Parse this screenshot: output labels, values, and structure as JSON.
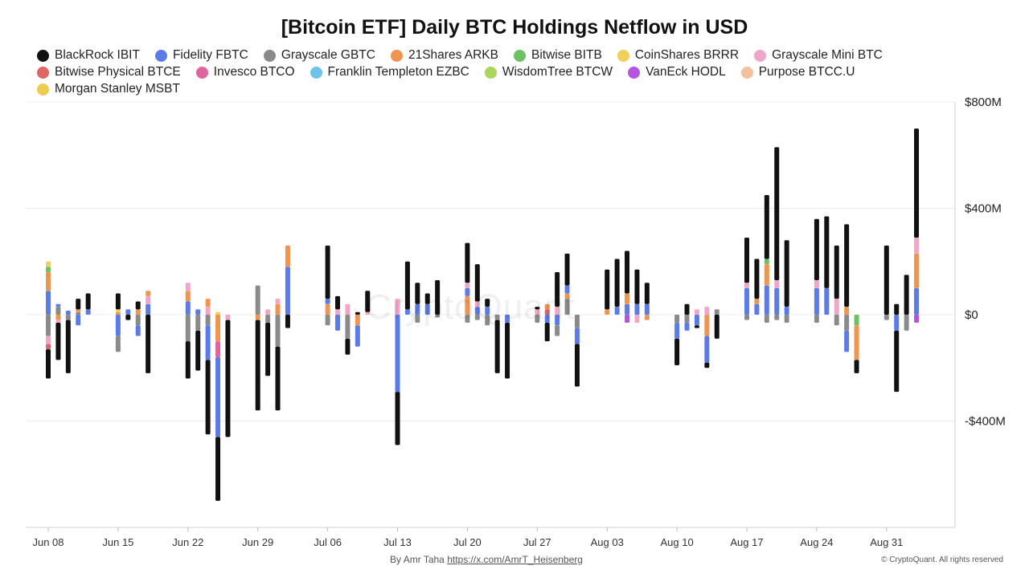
{
  "title": "[Bitcoin ETF] Daily BTC Holdings Netflow in USD",
  "watermark": "CryptoQuant",
  "footer": {
    "author_prefix": "By Amr Taha",
    "author_link": "https://x.com/AmrT_Heisenberg",
    "copyright": "© CryptoQuant. All rights reserved"
  },
  "colors": {
    "IBIT": "#111111",
    "FBTC": "#5b7be6",
    "GBTC": "#8a8a8a",
    "ARKB": "#f0944f",
    "BITB": "#6cc164",
    "BRRR": "#f0cf5a",
    "MINI": "#f2a6c7",
    "BTCE": "#e06666",
    "BTCO": "#e0649e",
    "EZBC": "#6ec3ea",
    "BTCW": "#a9d65c",
    "HODL": "#b454e0",
    "BTCC": "#f3c19e",
    "MSBT": "#eccd52"
  },
  "chart_data": {
    "type": "bar",
    "stacked": true,
    "title": "[Bitcoin ETF] Daily BTC Holdings Netflow in USD",
    "ylim": [
      -800,
      800
    ],
    "y_ticks": [
      800,
      400,
      0,
      -400
    ],
    "y_tick_labels": [
      "$800M",
      "$400M",
      "$0",
      "-$400M"
    ],
    "y_unit": "USD millions",
    "x_tick_labels": [
      "Jun 08",
      "Jun 15",
      "Jun 22",
      "Jun 29",
      "Jul 06",
      "Jul 13",
      "Jul 20",
      "Jul 27",
      "Aug 03",
      "Aug 10",
      "Aug 17",
      "Aug 24",
      "Aug 31"
    ],
    "legend_position": "top",
    "series": [
      {
        "key": "IBIT",
        "name": "BlackRock IBIT"
      },
      {
        "key": "FBTC",
        "name": "Fidelity FBTC"
      },
      {
        "key": "GBTC",
        "name": "Grayscale GBTC"
      },
      {
        "key": "ARKB",
        "name": "21Shares ARKB"
      },
      {
        "key": "BITB",
        "name": "Bitwise BITB"
      },
      {
        "key": "BRRR",
        "name": "CoinShares BRRR"
      },
      {
        "key": "MINI",
        "name": "Grayscale Mini BTC"
      },
      {
        "key": "BTCE",
        "name": "Bitwise Physical BTCE"
      },
      {
        "key": "BTCO",
        "name": "Invesco BTCO"
      },
      {
        "key": "EZBC",
        "name": "Franklin Templeton EZBC"
      },
      {
        "key": "BTCW",
        "name": "WisdomTree BTCW"
      },
      {
        "key": "HODL",
        "name": "VanEck HODL"
      },
      {
        "key": "BTCC",
        "name": "Purpose BTCC.U"
      },
      {
        "key": "MSBT",
        "name": "Morgan Stanley MSBT"
      }
    ],
    "days": [
      {
        "date": "Jun 08",
        "values": {
          "FBTC": 90,
          "ARKB": 70,
          "BITB": 20,
          "BRRR": 20,
          "GBTC": -80,
          "MINI": -30,
          "BTCE": -20,
          "IBIT": -110
        }
      },
      {
        "date": "Jun 09",
        "values": {
          "GBTC": 30,
          "FBTC": 10,
          "ARKB": -20,
          "MINI": -10,
          "GBTC2": 0,
          "IBIT": -140
        }
      },
      {
        "date": "Jun 10",
        "values": {
          "FBTC": 15,
          "GBTC": -20,
          "IBIT": -200
        }
      },
      {
        "date": "Jun 11",
        "values": {
          "GBTC": 10,
          "ARKB": 10,
          "FBTC": -40,
          "IBIT": 40
        }
      },
      {
        "date": "Jun 12",
        "values": {
          "FBTC": 20,
          "IBIT": 60
        }
      },
      {
        "date": "Jun 15",
        "values": {
          "ARKB": 10,
          "BRRR": 10,
          "IBIT": 60,
          "FBTC": -80,
          "GBTC": -60
        }
      },
      {
        "date": "Jun 16",
        "values": {
          "FBTC": 20,
          "IBIT": -20
        }
      },
      {
        "date": "Jun 17",
        "values": {
          "ARKB": 20,
          "IBIT": 30,
          "GBTC": -40,
          "FBTC": -40
        }
      },
      {
        "date": "Jun 18",
        "values": {
          "FBTC": 40,
          "MINI": 30,
          "ARKB": 20,
          "IBIT": -220
        }
      },
      {
        "date": "Jun 22",
        "values": {
          "FBTC": 50,
          "ARKB": 40,
          "MINI": 30,
          "GBTC": -100,
          "IBIT": -140
        }
      },
      {
        "date": "Jun 23",
        "values": {
          "FBTC": 20,
          "GBTC": -60,
          "IBIT": -150
        }
      },
      {
        "date": "Jun 24",
        "values": {
          "MINI": 30,
          "ARKB": 30,
          "GBTC": -40,
          "FBTC": -130,
          "IBIT": -280
        }
      },
      {
        "date": "Jun 25",
        "values": {
          "BRRR": 10,
          "ARKB": -100,
          "BTCO": -60,
          "FBTC": -300,
          "IBIT": -240
        }
      },
      {
        "date": "Jun 26",
        "values": {
          "MINI": -20,
          "IBIT": -440
        }
      },
      {
        "date": "Jun 29",
        "values": {
          "GBTC": 110,
          "ARKB": -20,
          "IBIT": -340
        }
      },
      {
        "date": "Jun 30",
        "values": {
          "MINI": 20,
          "GBTC": -30,
          "IBIT": -200
        }
      },
      {
        "date": "Jul 01",
        "values": {
          "ARKB": 40,
          "MINI": 20,
          "GBTC": -120,
          "IBIT": -240
        }
      },
      {
        "date": "Jul 02",
        "values": {
          "FBTC": 180,
          "ARKB": 80,
          "IBIT": -50
        }
      },
      {
        "date": "Jul 06",
        "values": {
          "IBIT": 200,
          "ARKB": 40,
          "FBTC": 20,
          "GBTC": -40
        }
      },
      {
        "date": "Jul 07",
        "values": {
          "IBIT": 50,
          "MINI": 20,
          "FBTC": -60
        }
      },
      {
        "date": "Jul 08",
        "values": {
          "MINI": 40,
          "GBTC": -90,
          "IBIT": -60
        }
      },
      {
        "date": "Jul 09",
        "values": {
          "IBIT": 10,
          "ARKB": -40,
          "FBTC": -80
        }
      },
      {
        "date": "Jul 10",
        "values": {
          "IBIT": 80,
          "MINI": 10
        }
      },
      {
        "date": "Jul 13",
        "values": {
          "MINI": 60,
          "FBTC": -290,
          "IBIT": -200
        }
      },
      {
        "date": "Jul 14",
        "values": {
          "IBIT": 180,
          "FBTC": 20
        }
      },
      {
        "date": "Jul 15",
        "values": {
          "IBIT": 80,
          "FBTC": 40,
          "GBTC": -30
        }
      },
      {
        "date": "Jul 16",
        "values": {
          "IBIT": 40,
          "FBTC": 40
        }
      },
      {
        "date": "Jul 17",
        "values": {
          "IBIT": 130,
          "GBTC": -10
        }
      },
      {
        "date": "Jul 20",
        "values": {
          "IBIT": 150,
          "ARKB": 70,
          "FBTC": 30,
          "MINI": 20,
          "GBTC": -30
        }
      },
      {
        "date": "Jul 21",
        "values": {
          "IBIT": 140,
          "FBTC": 30,
          "MINI": 20,
          "GBTC": -20
        }
      },
      {
        "date": "Jul 22",
        "values": {
          "IBIT": 30,
          "FBTC": 30,
          "GBTC": -40
        }
      },
      {
        "date": "Jul 23",
        "values": {
          "GBTC": -20,
          "IBIT": -200
        }
      },
      {
        "date": "Jul 24",
        "values": {
          "FBTC": -30,
          "IBIT": -210
        }
      },
      {
        "date": "Jul 27",
        "values": {
          "IBIT": 10,
          "MINI": 20,
          "GBTC": -30
        }
      },
      {
        "date": "Jul 28",
        "values": {
          "BTCE": 20,
          "ARKB": 20,
          "FBTC": -30,
          "IBIT": -70
        }
      },
      {
        "date": "Jul 29",
        "values": {
          "IBIT": 130,
          "MINI": 30,
          "FBTC": -40,
          "GBTC": -40
        }
      },
      {
        "date": "Jul 30",
        "values": {
          "IBIT": 120,
          "GBTC": 60,
          "ARKB": 20,
          "FBTC": 30
        }
      },
      {
        "date": "Jul 31",
        "values": {
          "GBTC": -50,
          "FBTC": -60,
          "IBIT": -160
        }
      },
      {
        "date": "Aug 03",
        "values": {
          "IBIT": 150,
          "ARKB": 20
        }
      },
      {
        "date": "Aug 04",
        "values": {
          "IBIT": 180,
          "FBTC": 30
        }
      },
      {
        "date": "Aug 05",
        "values": {
          "IBIT": 160,
          "FBTC": 40,
          "ARKB": 40,
          "HODL": -30
        }
      },
      {
        "date": "Aug 06",
        "values": {
          "IBIT": 130,
          "FBTC": 40,
          "MINI": -30
        }
      },
      {
        "date": "Aug 07",
        "values": {
          "IBIT": 80,
          "FBTC": 40,
          "ARKB": -20
        }
      },
      {
        "date": "Aug 10",
        "values": {
          "GBTC": -30,
          "FBTC": -60,
          "IBIT": -100
        }
      },
      {
        "date": "Aug 11",
        "values": {
          "IBIT": 40,
          "GBTC": -30,
          "FBTC": -30
        }
      },
      {
        "date": "Aug 12",
        "values": {
          "MINI": 20,
          "FBTC": -40,
          "IBIT": -10
        }
      },
      {
        "date": "Aug 13",
        "values": {
          "MINI": 30,
          "ARKB": -80,
          "FBTC": -100,
          "IBIT": -20
        }
      },
      {
        "date": "Aug 14",
        "values": {
          "GBTC": 20,
          "IBIT": -90
        }
      },
      {
        "date": "Aug 17",
        "values": {
          "IBIT": 170,
          "FBTC": 100,
          "MINI": 20,
          "GBTC": -20
        }
      },
      {
        "date": "Aug 18",
        "values": {
          "IBIT": 150,
          "FBTC": 40,
          "ARKB": 20
        }
      },
      {
        "date": "Aug 19",
        "values": {
          "IBIT": 240,
          "FBTC": 110,
          "ARKB": 80,
          "BITB": 20,
          "GBTC": -30
        }
      },
      {
        "date": "Aug 20",
        "values": {
          "IBIT": 500,
          "FBTC": 100,
          "MINI": 30,
          "GBTC": -20
        }
      },
      {
        "date": "Aug 21",
        "values": {
          "IBIT": 250,
          "FBTC": 30,
          "GBTC": -30
        }
      },
      {
        "date": "Aug 24",
        "values": {
          "IBIT": 230,
          "FBTC": 100,
          "MINI": 30,
          "GBTC": -30
        }
      },
      {
        "date": "Aug 25",
        "values": {
          "IBIT": 270,
          "FBTC": 100
        }
      },
      {
        "date": "Aug 26",
        "values": {
          "IBIT": 200,
          "MINI": 60,
          "GBTC": -40
        }
      },
      {
        "date": "Aug 27",
        "values": {
          "IBIT": 310,
          "ARKB": 30,
          "GBTC": -60,
          "FBTC": -80
        }
      },
      {
        "date": "Aug 28",
        "values": {
          "BITB": -40,
          "ARKB": -130,
          "IBIT": -50
        }
      },
      {
        "date": "Aug 31",
        "values": {
          "IBIT": 260,
          "GBTC": -20
        }
      },
      {
        "date": "Sep 01",
        "values": {
          "IBIT": 40,
          "FBTC": -60,
          "IBIT2": 0,
          "GBTC": 0,
          "IBITN": -230
        }
      },
      {
        "date": "Sep 02",
        "values": {
          "IBIT": 150,
          "GBTC": -60
        }
      },
      {
        "date": "Sep 03",
        "values": {
          "IBIT": 410,
          "FBTC": 100,
          "ARKB": 130,
          "MINI": 60,
          "HODL": -30
        }
      }
    ]
  }
}
